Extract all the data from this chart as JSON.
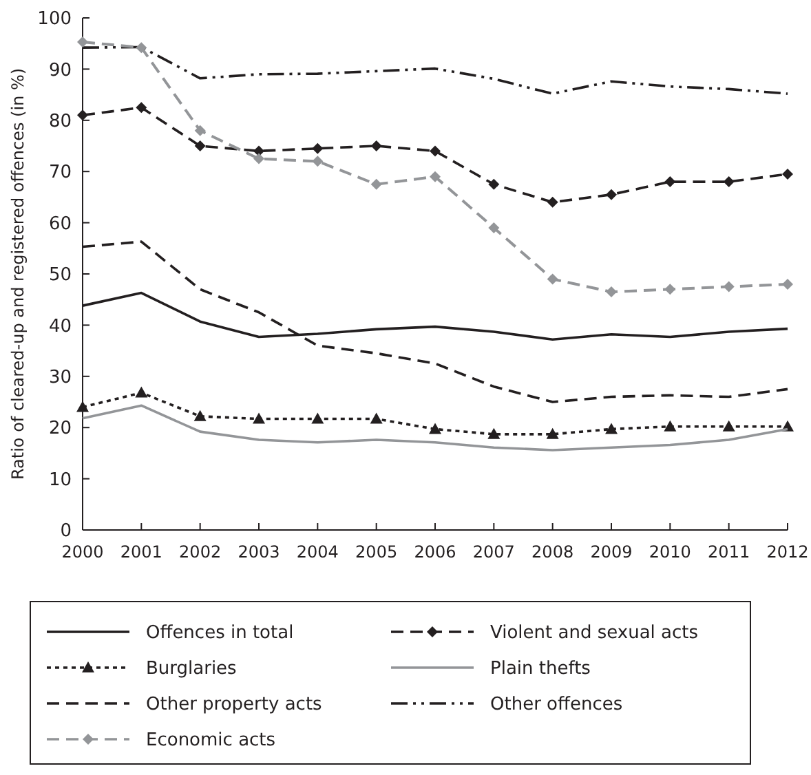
{
  "chart_data": {
    "type": "line",
    "ylabel": "Ratio of cleared-up and registered offences (in %)",
    "x": [
      2000,
      2001,
      2002,
      2003,
      2004,
      2005,
      2006,
      2007,
      2008,
      2009,
      2010,
      2011,
      2012
    ],
    "xlim": [
      2000,
      2012
    ],
    "xticks": [
      2000,
      2001,
      2002,
      2003,
      2004,
      2005,
      2006,
      2007,
      2008,
      2009,
      2010,
      2011,
      2012
    ],
    "ylim": [
      0,
      100
    ],
    "yticks": [
      0,
      10,
      20,
      30,
      40,
      50,
      60,
      70,
      80,
      90,
      100
    ],
    "grid": false,
    "legend": "bottom",
    "series": [
      {
        "name": "Offences in total",
        "color": "#231f20",
        "line_style": "solid",
        "marker": "none",
        "values": [
          43.8,
          46.3,
          40.7,
          37.7,
          38.3,
          39.2,
          39.7,
          38.7,
          37.2,
          38.2,
          37.7,
          38.7,
          39.3
        ]
      },
      {
        "name": "Violent and sexual acts",
        "color": "#231f20",
        "line_style": "dashed",
        "marker": "diamond",
        "values": [
          81,
          82.5,
          75,
          74,
          74.5,
          75,
          74,
          67.5,
          64,
          65.5,
          68,
          68,
          69.5
        ]
      },
      {
        "name": "Burglaries",
        "color": "#231f20",
        "line_style": "dotted",
        "marker": "triangle",
        "values": [
          24,
          26.8,
          22.2,
          21.7,
          21.7,
          21.7,
          19.7,
          18.7,
          18.7,
          19.7,
          20.2,
          20.2,
          20.2
        ]
      },
      {
        "name": "Plain thefts",
        "color": "#939598",
        "line_style": "solid",
        "marker": "none",
        "values": [
          21.8,
          24.3,
          19.2,
          17.6,
          17.1,
          17.6,
          17.1,
          16.1,
          15.6,
          16.1,
          16.6,
          17.6,
          19.7
        ]
      },
      {
        "name": "Other property acts",
        "color": "#231f20",
        "line_style": "dashed",
        "marker": "none",
        "values": [
          55.3,
          56.3,
          47,
          42.5,
          36,
          34.5,
          32.5,
          28,
          25,
          26,
          26.3,
          26,
          27.5
        ]
      },
      {
        "name": "Other offences",
        "color": "#231f20",
        "line_style": "dashdot",
        "marker": "none",
        "values": [
          94.2,
          94.3,
          88.2,
          89,
          89.1,
          89.6,
          90.1,
          88.1,
          85.2,
          87.6,
          86.6,
          86.1,
          85.2
        ]
      },
      {
        "name": "Economic acts",
        "color": "#939598",
        "line_style": "dashed",
        "marker": "diamond",
        "values": [
          95.3,
          94.2,
          78,
          72.5,
          72,
          67.5,
          69,
          59,
          49,
          46.5,
          47,
          47.5,
          48
        ]
      }
    ]
  }
}
